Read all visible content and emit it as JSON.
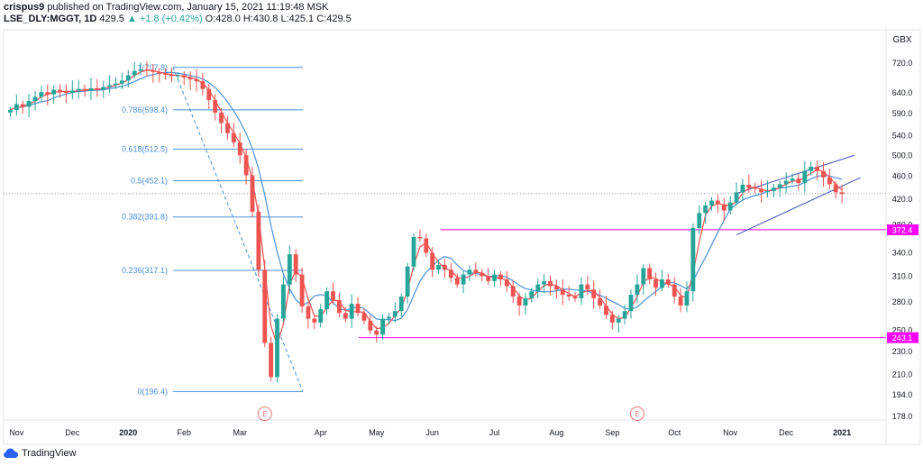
{
  "header": {
    "author": "crispus9",
    "published_text": "published on TradingView.com, January 15, 2021 11:19:48 MSK",
    "symbol": "LSE_DLY:MGGT, 1D",
    "last": "429.5",
    "change": "▲ +1.8 (+0.42%)",
    "ohlc": "O:428.0 H:430.8 L:425.1 C:429.5"
  },
  "footer": {
    "brand": "TradingView"
  },
  "colors": {
    "up": "#26a69a",
    "down": "#ef5350",
    "sma_fast": "#ef5350",
    "sma_slow": "#4a90d9",
    "fib": "#4a90d9",
    "level": "#ff00ff",
    "channel": "#3f51b5",
    "earnings": "#e57373"
  },
  "chart_data": {
    "type": "candlestick",
    "currency_label": "GBX",
    "price_ticks": [
      "720.0",
      "640.0",
      "590.0",
      "540.0",
      "500.0",
      "460.0",
      "420.0",
      "380.0",
      "340.0",
      "310.0",
      "280.0",
      "250.0",
      "230.0",
      "210.0",
      "194.0",
      "178.0"
    ],
    "x_ticks": [
      "Nov",
      "Dec",
      "2020",
      "Feb",
      "Mar",
      "Apr",
      "May",
      "Jun",
      "Jul",
      "Aug",
      "Sep",
      "Oct",
      "Nov",
      "Dec",
      "2021"
    ],
    "x_tick_weeks": [
      1,
      10,
      19,
      28,
      37,
      50,
      59,
      68,
      78,
      88,
      97,
      107,
      116,
      125,
      134
    ],
    "total_weeks": 140,
    "current_price": 429.5,
    "fibonacci": [
      {
        "label": "1(707.8)",
        "price": 707.8
      },
      {
        "label": "0.786(598.4)",
        "price": 598.4
      },
      {
        "label": "0.618(512.5)",
        "price": 512.5
      },
      {
        "label": "0.5(452.1)",
        "price": 452.1
      },
      {
        "label": "0.382(391.8)",
        "price": 391.8
      },
      {
        "label": "0.236(317.1)",
        "price": 317.1
      },
      {
        "label": "0(196.4)",
        "price": 196.4
      }
    ],
    "levels": [
      {
        "label": "372.4",
        "price": 372.4
      },
      {
        "label": "243.1",
        "price": 243.1
      }
    ],
    "earnings_markers": [
      {
        "label": "E",
        "week": 41
      },
      {
        "label": "E",
        "week": 101
      }
    ],
    "weekly_close": [
      598,
      612,
      606,
      620,
      630,
      642,
      636,
      648,
      644,
      640,
      646,
      650,
      645,
      652,
      648,
      655,
      660,
      664,
      672,
      686,
      698,
      702,
      700,
      695,
      690,
      688,
      684,
      686,
      680,
      675,
      670,
      650,
      622,
      592,
      568,
      546,
      526,
      500,
      462,
      400,
      318,
      238,
      208,
      262,
      300,
      338,
      312,
      275,
      262,
      258,
      272,
      292,
      282,
      268,
      262,
      278,
      268,
      260,
      250,
      246,
      262,
      264,
      270,
      286,
      322,
      362,
      360,
      340,
      318,
      324,
      318,
      308,
      300,
      312,
      318,
      314,
      310,
      304,
      312,
      306,
      298,
      286,
      276,
      284,
      292,
      300,
      304,
      298,
      294,
      288,
      286,
      284,
      300,
      294,
      284,
      276,
      266,
      258,
      262,
      270,
      288,
      300,
      320,
      306,
      296,
      306,
      300,
      286,
      276,
      292,
      375,
      398,
      410,
      418,
      412,
      402,
      415,
      432,
      445,
      440,
      438,
      432,
      434,
      440,
      446,
      452,
      456,
      448,
      470,
      478,
      470,
      458,
      446,
      432,
      429
    ]
  }
}
